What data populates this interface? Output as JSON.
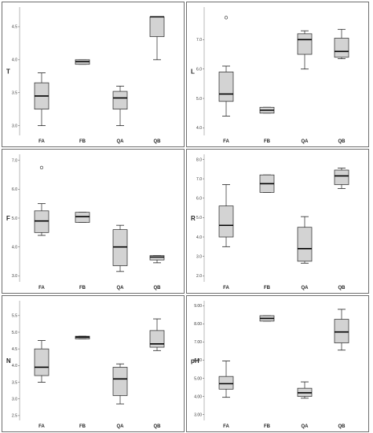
{
  "chart_data": [
    {
      "type": "boxplot",
      "ylabel": "T",
      "categories": [
        "FA",
        "FB",
        "QA",
        "QB"
      ],
      "yticks": [
        "3.0",
        "3.5",
        "4.0",
        "4.5"
      ],
      "ylim": [
        2.9,
        4.75
      ],
      "boxes": [
        {
          "min": 3.0,
          "q1": 3.25,
          "median": 3.45,
          "q3": 3.65,
          "max": 3.8
        },
        {
          "min": 3.93,
          "q1": 3.93,
          "median": 3.97,
          "q3": 4.0,
          "max": 4.0
        },
        {
          "min": 3.0,
          "q1": 3.25,
          "median": 3.42,
          "q3": 3.52,
          "max": 3.6
        },
        {
          "min": 4.0,
          "q1": 4.35,
          "median": 4.65,
          "q3": 4.65,
          "max": 4.65
        }
      ],
      "outliers": []
    },
    {
      "type": "boxplot",
      "ylabel": "L",
      "categories": [
        "FA",
        "FB",
        "QA",
        "QB"
      ],
      "yticks": [
        "4.0",
        "5.0",
        "6.0",
        "7.0"
      ],
      "ylim": [
        3.85,
        8.0
      ],
      "boxes": [
        {
          "min": 4.4,
          "q1": 4.9,
          "median": 5.15,
          "q3": 5.9,
          "max": 6.1
        },
        {
          "min": 4.5,
          "q1": 4.5,
          "median": 4.6,
          "q3": 4.7,
          "max": 4.7
        },
        {
          "min": 6.0,
          "q1": 6.5,
          "median": 7.0,
          "q3": 7.2,
          "max": 7.3
        },
        {
          "min": 6.35,
          "q1": 6.4,
          "median": 6.6,
          "q3": 7.05,
          "max": 7.35
        }
      ],
      "outliers": [
        {
          "category": "FA",
          "value": 7.75
        }
      ]
    },
    {
      "type": "boxplot",
      "ylabel": "F",
      "categories": [
        "FA",
        "FB",
        "QA",
        "QB"
      ],
      "yticks": [
        "3.0",
        "4.0",
        "5.0",
        "6.0",
        "7.0"
      ],
      "ylim": [
        2.9,
        7.1
      ],
      "boxes": [
        {
          "min": 4.4,
          "q1": 4.5,
          "median": 4.9,
          "q3": 5.25,
          "max": 5.5
        },
        {
          "min": 4.85,
          "q1": 4.85,
          "median": 5.05,
          "q3": 5.2,
          "max": 5.2
        },
        {
          "min": 3.15,
          "q1": 3.35,
          "median": 4.0,
          "q3": 4.6,
          "max": 4.75
        },
        {
          "min": 3.45,
          "q1": 3.55,
          "median": 3.65,
          "q3": 3.7,
          "max": 3.7
        }
      ],
      "outliers": [
        {
          "category": "FA",
          "value": 6.75
        }
      ]
    },
    {
      "type": "boxplot",
      "ylabel": "R",
      "categories": [
        "FA",
        "FB",
        "QA",
        "QB"
      ],
      "yticks": [
        "2.0",
        "3.0",
        "4.0",
        "5.0",
        "6.0",
        "7.0",
        "8.0"
      ],
      "ylim": [
        1.85,
        8.1
      ],
      "boxes": [
        {
          "min": 3.5,
          "q1": 4.0,
          "median": 4.6,
          "q3": 5.6,
          "max": 6.7
        },
        {
          "min": 6.3,
          "q1": 6.3,
          "median": 6.75,
          "q3": 7.2,
          "max": 7.2
        },
        {
          "min": 2.65,
          "q1": 2.75,
          "median": 3.4,
          "q3": 4.5,
          "max": 5.05
        },
        {
          "min": 6.5,
          "q1": 6.7,
          "median": 7.15,
          "q3": 7.45,
          "max": 7.55
        }
      ],
      "outliers": []
    },
    {
      "type": "boxplot",
      "ylabel": "N",
      "categories": [
        "FA",
        "FB",
        "QA",
        "QB"
      ],
      "yticks": [
        "2.5",
        "3.0",
        "3.5",
        "4.0",
        "4.5",
        "5.0",
        "5.5"
      ],
      "ylim": [
        2.45,
        5.85
      ],
      "boxes": [
        {
          "min": 3.5,
          "q1": 3.7,
          "median": 3.95,
          "q3": 4.5,
          "max": 4.75
        },
        {
          "min": 4.8,
          "q1": 4.8,
          "median": 4.85,
          "q3": 4.88,
          "max": 4.88
        },
        {
          "min": 2.85,
          "q1": 3.1,
          "median": 3.6,
          "q3": 3.95,
          "max": 4.05
        },
        {
          "min": 4.45,
          "q1": 4.55,
          "median": 4.65,
          "q3": 5.05,
          "max": 5.4
        }
      ],
      "outliers": []
    },
    {
      "type": "boxplot",
      "ylabel": "pH",
      "categories": [
        "FA",
        "FB",
        "QA",
        "QB"
      ],
      "yticks": [
        "3.00",
        "4.00",
        "5.00",
        "6.00",
        "7.00",
        "8.00",
        "9.00"
      ],
      "ylim": [
        2.85,
        9.1
      ],
      "boxes": [
        {
          "min": 3.95,
          "q1": 4.4,
          "median": 4.7,
          "q3": 5.1,
          "max": 5.95
        },
        {
          "min": 8.15,
          "q1": 8.15,
          "median": 8.3,
          "q3": 8.45,
          "max": 8.45
        },
        {
          "min": 3.9,
          "q1": 4.0,
          "median": 4.2,
          "q3": 4.45,
          "max": 4.8
        },
        {
          "min": 6.55,
          "q1": 6.95,
          "median": 7.55,
          "q3": 8.25,
          "max": 8.8
        }
      ],
      "outliers": []
    }
  ],
  "colors": {
    "box_fill": "#d3d3d3",
    "box_stroke": "#222222",
    "frame": "#6e6e6e"
  }
}
